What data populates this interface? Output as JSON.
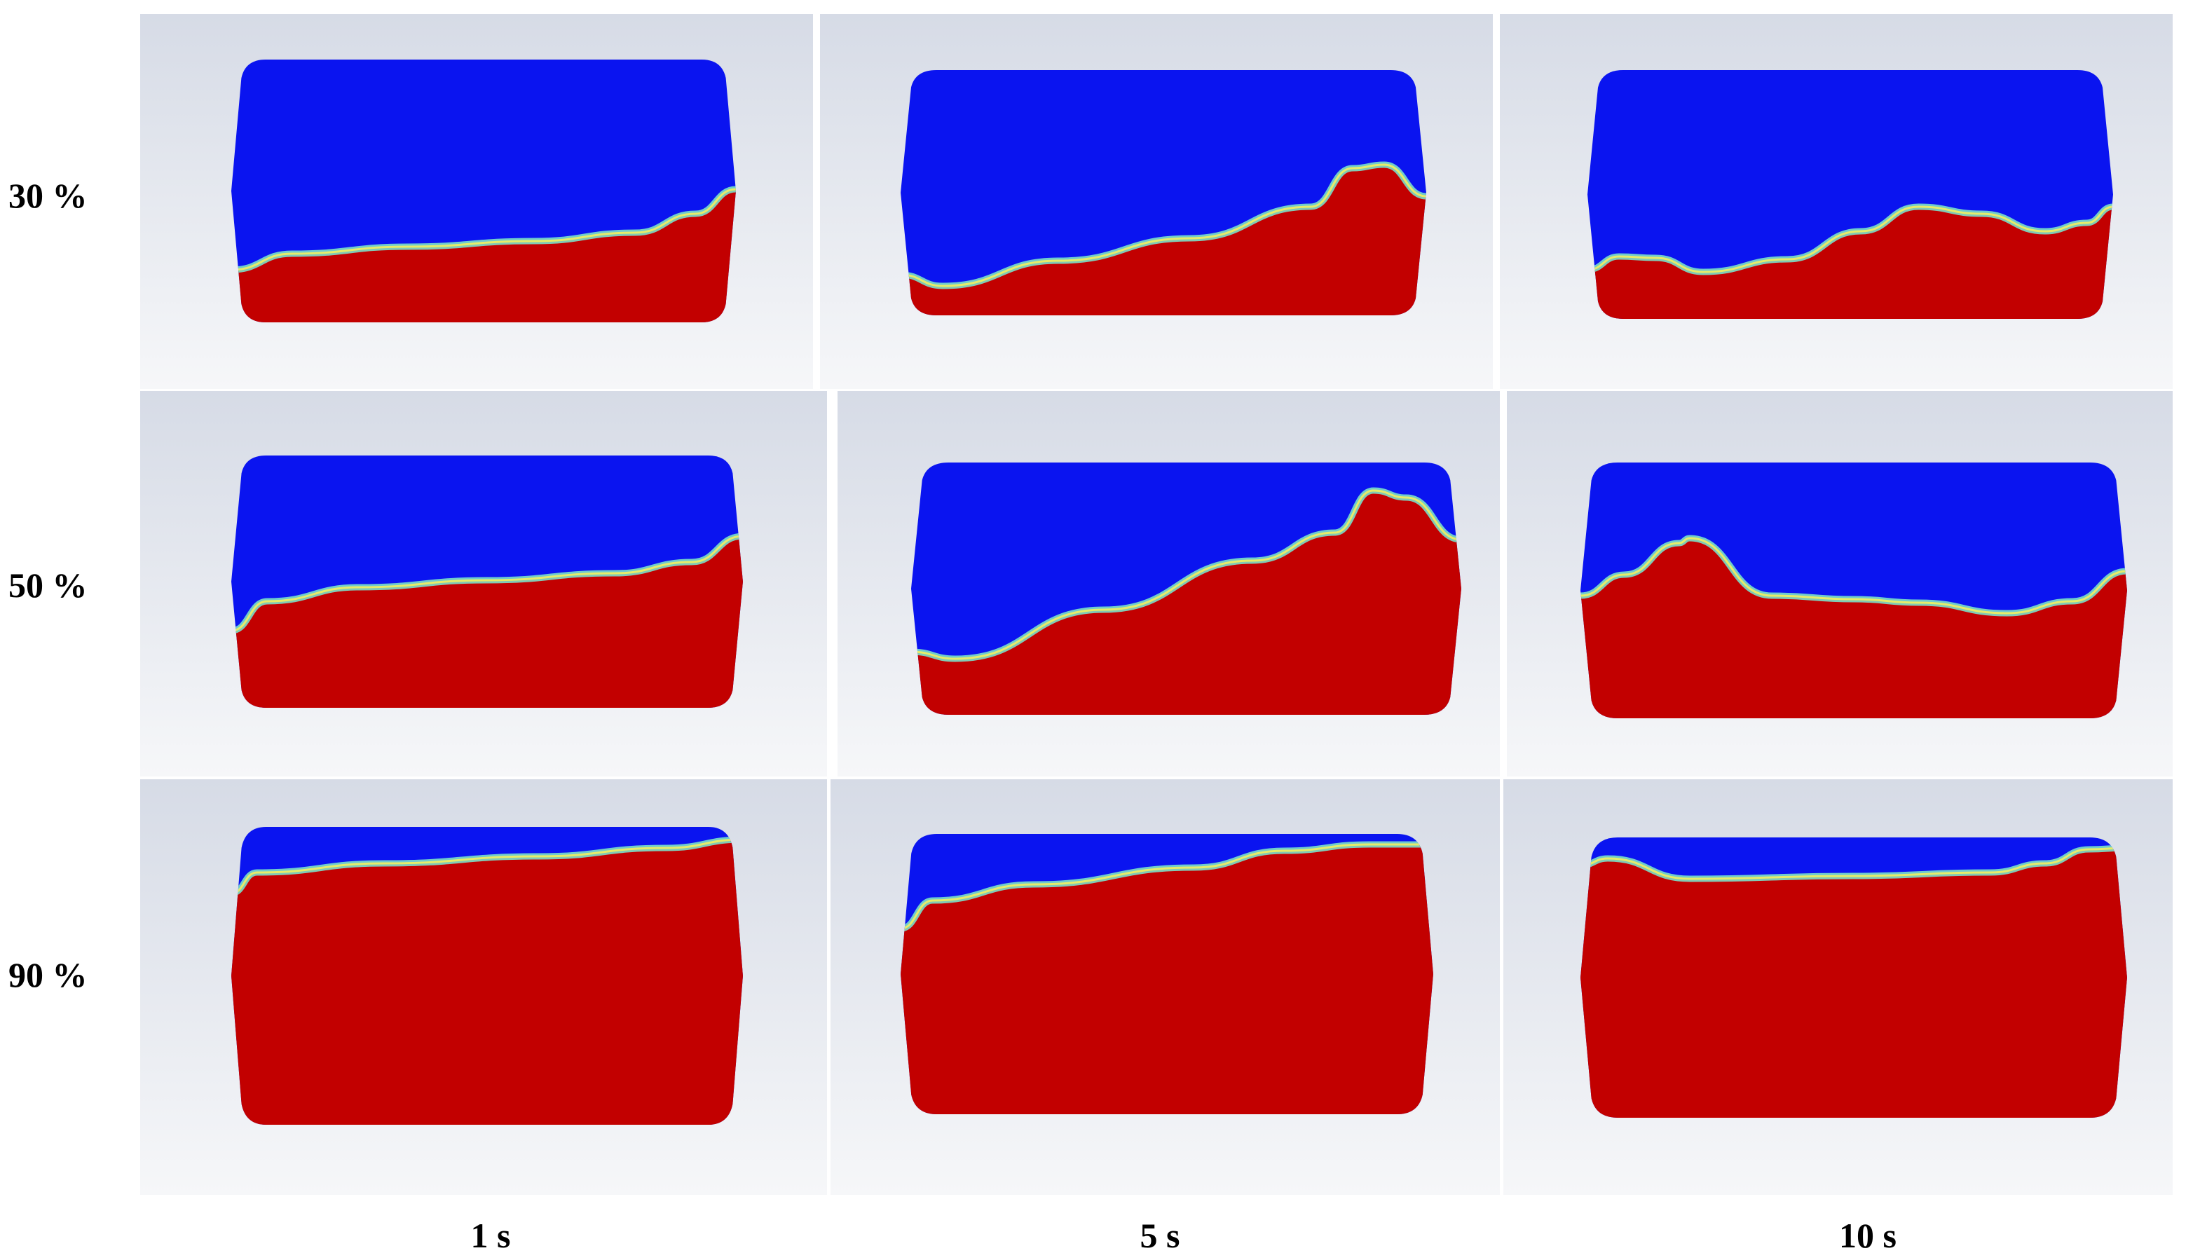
{
  "rows": [
    {
      "label": "30 %"
    },
    {
      "label": "50 %"
    },
    {
      "label": "90 %"
    }
  ],
  "columns": [
    {
      "label": "1 s"
    },
    {
      "label": "5 s"
    },
    {
      "label": "10 s"
    }
  ],
  "colors": {
    "gas": "#0a14f0",
    "liquid": "#c20000",
    "interface_mid": "#7ae0c8",
    "interface_light": "#f2f060",
    "background_top": "#d6dbe6",
    "background_bottom": "#f6f7f9"
  },
  "panels": [
    {
      "fill_level": 30,
      "time": 1
    },
    {
      "fill_level": 30,
      "time": 5
    },
    {
      "fill_level": 30,
      "time": 10
    },
    {
      "fill_level": 50,
      "time": 1
    },
    {
      "fill_level": 50,
      "time": 5
    },
    {
      "fill_level": 50,
      "time": 10
    },
    {
      "fill_level": 90,
      "time": 1
    },
    {
      "fill_level": 90,
      "time": 5
    },
    {
      "fill_level": 90,
      "time": 10
    }
  ]
}
